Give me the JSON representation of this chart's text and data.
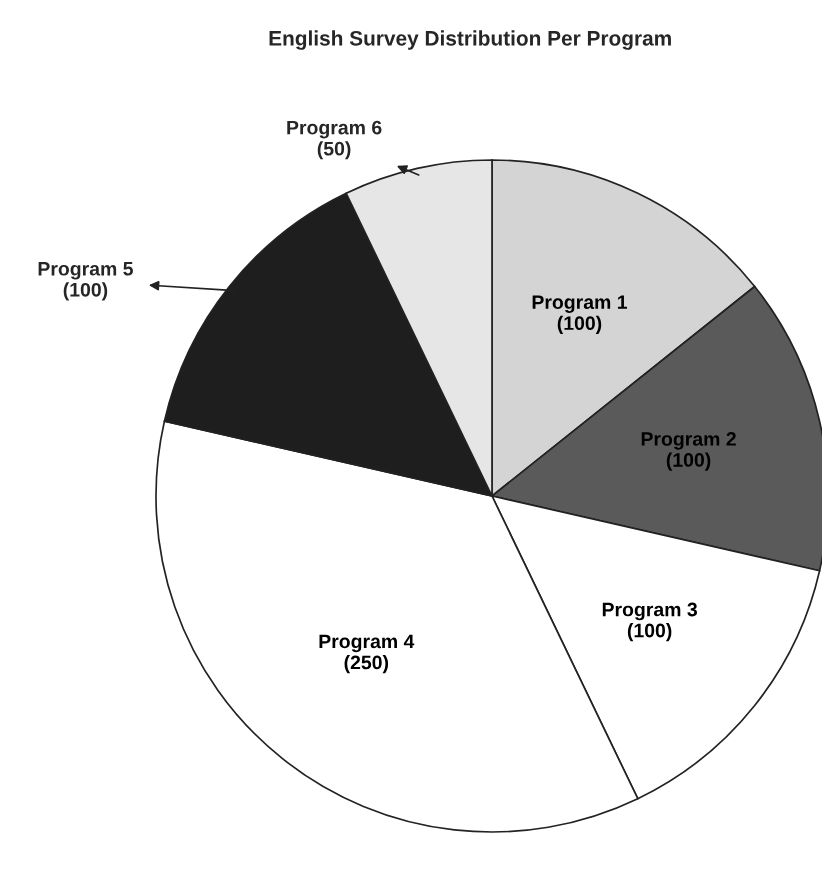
{
  "chart_data": {
    "type": "pie",
    "title": "English Survey Distribution Per Program",
    "categories": [
      "Program 1",
      "Program 2",
      "Program 3",
      "Program 4",
      "Program 5",
      "Program 6"
    ],
    "values": [
      100,
      100,
      100,
      250,
      100,
      50
    ],
    "colors": [
      "#d4d4d4",
      "#5a5a5a",
      "#ffffff",
      "#ffffff",
      "#1e1e1e",
      "#e6e6e6"
    ],
    "value_labels": [
      "(100)",
      "(100)",
      "(100)",
      "(250)",
      "(100)",
      "(50)"
    ]
  }
}
